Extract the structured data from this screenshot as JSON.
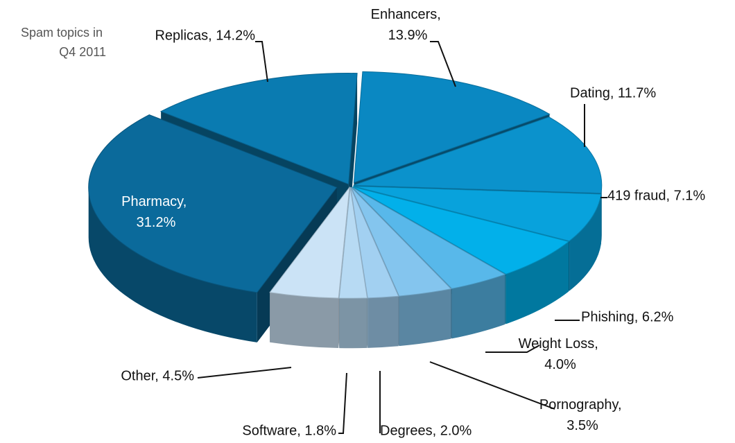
{
  "chart_data": {
    "type": "pie3d",
    "title": "Spam topics in Q4 2011",
    "labels": [
      "Enhancers, 13.9%",
      "Dating, 11.7%",
      "419 fraud, 7.1%",
      "Phishing, 6.2%",
      "Weight Loss, 4.0%",
      "Pornography, 3.5%",
      "Degrees, 2.0%",
      "Software, 1.8%",
      "Other, 4.5%",
      "Pharmacy, 31.2%",
      "Replicas, 14.2%"
    ],
    "values": [
      13.9,
      11.7,
      7.1,
      6.2,
      4.0,
      3.5,
      2.0,
      1.8,
      4.5,
      31.2,
      14.2
    ],
    "colors": [
      "#0a88c2",
      "#0b92cc",
      "#08a2dc",
      "#02b0ea",
      "#58b8ea",
      "#84c5ee",
      "#a2d0f1",
      "#b7daf3",
      "#cbe3f6",
      "#0b6a9b",
      "#0a7bb1"
    ]
  }
}
